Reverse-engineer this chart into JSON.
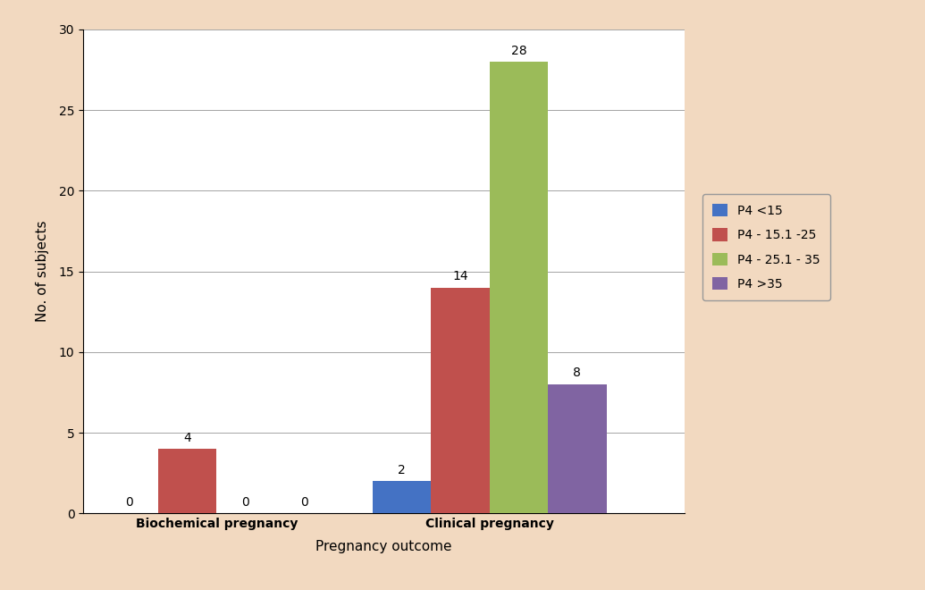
{
  "categories": [
    "Biochemical pregnancy",
    "Clinical pregnancy"
  ],
  "series": [
    {
      "label": "P4 <15",
      "color": "#4472C4",
      "values": [
        0,
        2
      ]
    },
    {
      "label": "P4 - 15.1 -25",
      "color": "#C0504D",
      "values": [
        4,
        14
      ]
    },
    {
      "label": "P4 - 25.1 - 35",
      "color": "#9BBB59",
      "values": [
        0,
        28
      ]
    },
    {
      "label": "P4 >35",
      "color": "#8064A2",
      "values": [
        0,
        8
      ]
    }
  ],
  "xlabel": "Pregnancy outcome",
  "ylabel": "No. of subjects",
  "ylim": [
    0,
    30
  ],
  "yticks": [
    0,
    5,
    10,
    15,
    20,
    25,
    30
  ],
  "background_color": "#F2D9C0",
  "plot_bg_color": "#FFFFFF",
  "bar_width": 0.18,
  "label_fontsize": 11,
  "tick_fontsize": 10,
  "legend_fontsize": 10,
  "annotation_fontsize": 10,
  "group_centers": [
    0.31,
    1.15
  ],
  "xlim": [
    -0.1,
    1.75
  ]
}
